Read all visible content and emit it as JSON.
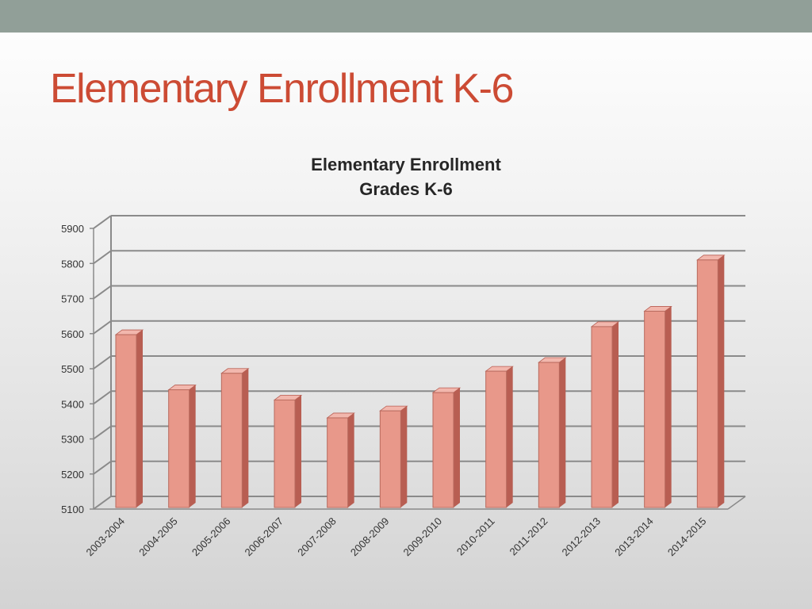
{
  "slide": {
    "title": "Elementary Enrollment K-6",
    "colors": {
      "title": "#cc4b34",
      "band": "#919f98"
    }
  },
  "chart_data": {
    "type": "bar",
    "title": [
      "Elementary Enrollment",
      "Grades K-6"
    ],
    "xlabel": "",
    "ylabel": "",
    "categories": [
      "2003-2004",
      "2004-2005",
      "2005-2006",
      "2006-2007",
      "2007-2008",
      "2008-2009",
      "2009-2010",
      "2010-2011",
      "2011-2012",
      "2012-2013",
      "2013-2014",
      "2014-2015"
    ],
    "values": [
      5597,
      5440,
      5487,
      5411,
      5360,
      5380,
      5432,
      5493,
      5518,
      5620,
      5664,
      5810
    ],
    "ylim": [
      5100,
      5900
    ],
    "yticks": [
      5100,
      5200,
      5300,
      5400,
      5500,
      5600,
      5700,
      5800,
      5900
    ],
    "grid": true,
    "legend": false,
    "style": "3d",
    "colors": {
      "bar_front": "#e8988a",
      "bar_side": "#b85e52",
      "bar_top": "#f2b7ad",
      "grid": "#8a8a8a"
    }
  }
}
